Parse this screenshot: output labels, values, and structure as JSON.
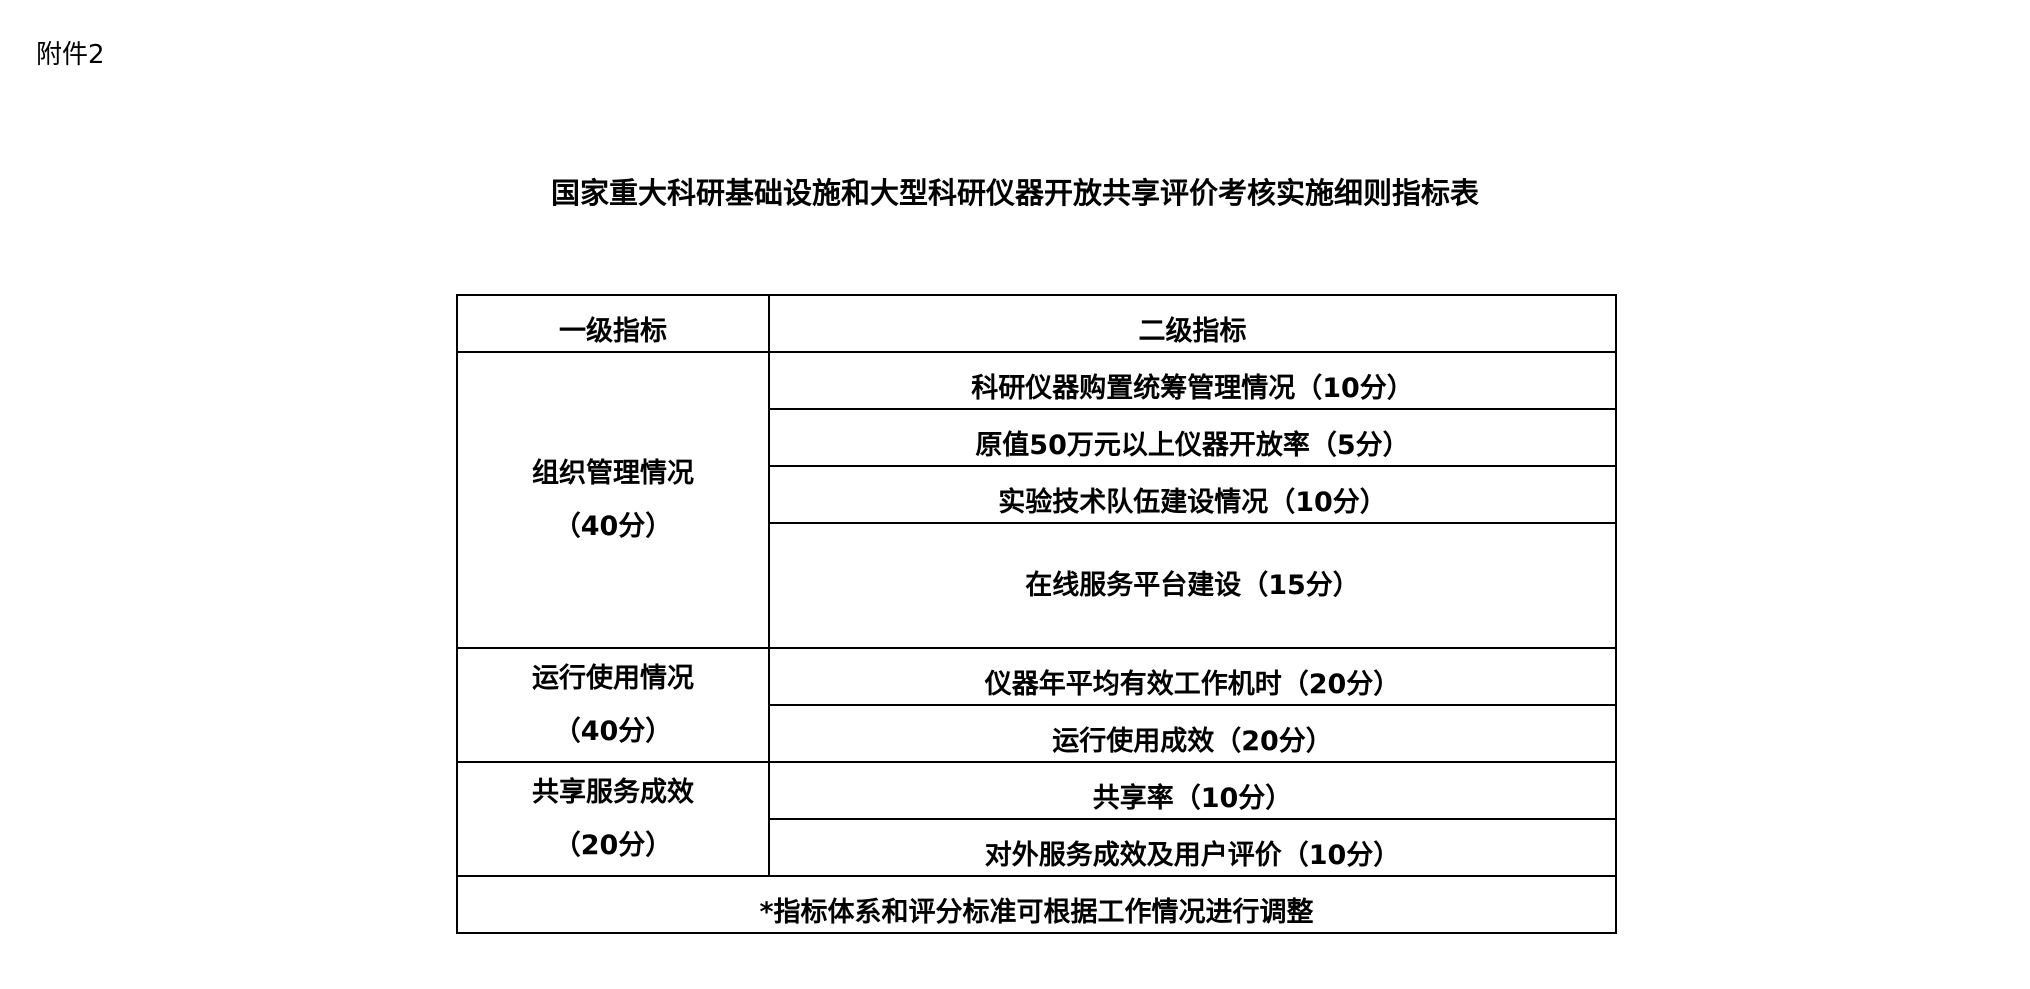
{
  "attachment_label": "附件2",
  "title": "国家重大科研基础设施和大型科研仪器开放共享评价考核实施细则指标表",
  "table": {
    "headers": [
      "一级指标",
      "二级指标"
    ],
    "groups": [
      {
        "name": "组织管理情况",
        "score": "（40分）",
        "items": [
          "科研仪器购置统筹管理情况（10分）",
          "原值50万元以上仪器开放率（5分）",
          "实验技术队伍建设情况（10分）",
          "在线服务平台建设（15分）"
        ]
      },
      {
        "name": "运行使用情况",
        "score": "（40分）",
        "items": [
          "仪器年平均有效工作机时（20分）",
          "运行使用成效（20分）"
        ]
      },
      {
        "name": "共享服务成效",
        "score": "（20分）",
        "items": [
          "共享率（10分）",
          "对外服务成效及用户评价（10分）"
        ]
      }
    ],
    "footnote": "*指标体系和评分标准可根据工作情况进行调整"
  }
}
